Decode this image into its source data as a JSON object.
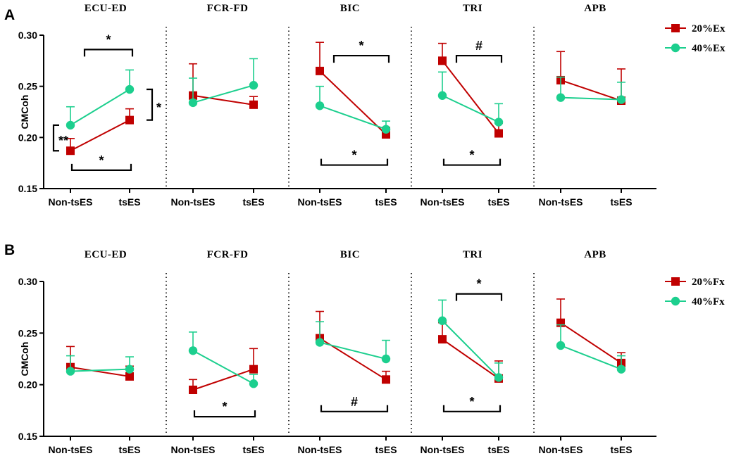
{
  "chart_data": [
    {
      "type": "line",
      "panel_label": "A",
      "ylabel": "CMCoh",
      "ylim": [
        0.15,
        0.3
      ],
      "yticks": [
        "0.15",
        "0.20",
        "0.25",
        "0.30"
      ],
      "conditions": [
        "Non-tsES",
        "tsES"
      ],
      "legend": [
        {
          "name": "20%Ex",
          "color": "#c00000",
          "marker": "square"
        },
        {
          "name": "40%Ex",
          "color": "#1ccf8e",
          "marker": "circle"
        }
      ],
      "muscles": [
        {
          "name": "ECU-ED",
          "series": [
            {
              "values": [
                0.187,
                0.217
              ],
              "err": [
                0.012,
                0.011
              ]
            },
            {
              "values": [
                0.212,
                0.247
              ],
              "err": [
                0.018,
                0.019
              ]
            }
          ]
        },
        {
          "name": "FCR-FD",
          "series": [
            {
              "values": [
                0.241,
                0.232
              ],
              "err": [
                0.031,
                0.008
              ]
            },
            {
              "values": [
                0.234,
                0.251
              ],
              "err": [
                0.024,
                0.026
              ]
            }
          ]
        },
        {
          "name": "BIC",
          "series": [
            {
              "values": [
                0.265,
                0.203
              ],
              "err": [
                0.028,
                0.007
              ]
            },
            {
              "values": [
                0.231,
                0.208
              ],
              "err": [
                0.019,
                0.008
              ]
            }
          ]
        },
        {
          "name": "TRI",
          "series": [
            {
              "values": [
                0.275,
                0.204
              ],
              "err": [
                0.017,
                0.01
              ]
            },
            {
              "values": [
                0.241,
                0.215
              ],
              "err": [
                0.023,
                0.018
              ]
            }
          ]
        },
        {
          "name": "APB",
          "series": [
            {
              "values": [
                0.256,
                0.236
              ],
              "err": [
                0.028,
                0.031
              ]
            },
            {
              "values": [
                0.239,
                0.237
              ],
              "err": [
                0.02,
                0.017
              ]
            }
          ]
        }
      ],
      "annotations": [
        {
          "muscle": 0,
          "text": "*",
          "kind": "top",
          "level": 0.286
        },
        {
          "muscle": 0,
          "text": "*",
          "kind": "bottom",
          "level": 0.168
        },
        {
          "muscle": 0,
          "text": "**",
          "kind": "left",
          "range": [
            0.187,
            0.212
          ]
        },
        {
          "muscle": 0,
          "text": "*",
          "kind": "right",
          "range": [
            0.217,
            0.247
          ]
        },
        {
          "muscle": 2,
          "text": "*",
          "kind": "top",
          "level": 0.28
        },
        {
          "muscle": 2,
          "text": "*",
          "kind": "bottom",
          "level": 0.173
        },
        {
          "muscle": 3,
          "text": "#",
          "kind": "top",
          "level": 0.28
        },
        {
          "muscle": 3,
          "text": "*",
          "kind": "bottom",
          "level": 0.173
        }
      ]
    },
    {
      "type": "line",
      "panel_label": "B",
      "ylabel": "CMCoh",
      "ylim": [
        0.15,
        0.3
      ],
      "yticks": [
        "0.15",
        "0.20",
        "0.25",
        "0.30"
      ],
      "conditions": [
        "Non-tsES",
        "tsES"
      ],
      "legend": [
        {
          "name": "20%Fx",
          "color": "#c00000",
          "marker": "square"
        },
        {
          "name": "40%Fx",
          "color": "#1ccf8e",
          "marker": "circle"
        }
      ],
      "muscles": [
        {
          "name": "ECU-ED",
          "series": [
            {
              "values": [
                0.217,
                0.208
              ],
              "err": [
                0.02,
                0.01
              ]
            },
            {
              "values": [
                0.213,
                0.215
              ],
              "err": [
                0.015,
                0.012
              ]
            }
          ]
        },
        {
          "name": "FCR-FD",
          "series": [
            {
              "values": [
                0.195,
                0.215
              ],
              "err": [
                0.01,
                0.02
              ]
            },
            {
              "values": [
                0.233,
                0.201
              ],
              "err": [
                0.018,
                0.009
              ]
            }
          ]
        },
        {
          "name": "BIC",
          "series": [
            {
              "values": [
                0.245,
                0.205
              ],
              "err": [
                0.026,
                0.008
              ]
            },
            {
              "values": [
                0.241,
                0.225
              ],
              "err": [
                0.02,
                0.018
              ]
            }
          ]
        },
        {
          "name": "TRI",
          "series": [
            {
              "values": [
                0.244,
                0.206
              ],
              "err": [
                0.016,
                0.017
              ]
            },
            {
              "values": [
                0.262,
                0.207
              ],
              "err": [
                0.02,
                0.014
              ]
            }
          ]
        },
        {
          "name": "APB",
          "series": [
            {
              "values": [
                0.26,
                0.221
              ],
              "err": [
                0.023,
                0.01
              ]
            },
            {
              "values": [
                0.238,
                0.215
              ],
              "err": [
                0.02,
                0.013
              ]
            }
          ]
        }
      ],
      "annotations": [
        {
          "muscle": 1,
          "text": "*",
          "kind": "bottom",
          "level": 0.169
        },
        {
          "muscle": 2,
          "text": "#",
          "kind": "bottom",
          "level": 0.174
        },
        {
          "muscle": 3,
          "text": "*",
          "kind": "top",
          "level": 0.288
        },
        {
          "muscle": 3,
          "text": "*",
          "kind": "bottom",
          "level": 0.174
        }
      ]
    }
  ]
}
